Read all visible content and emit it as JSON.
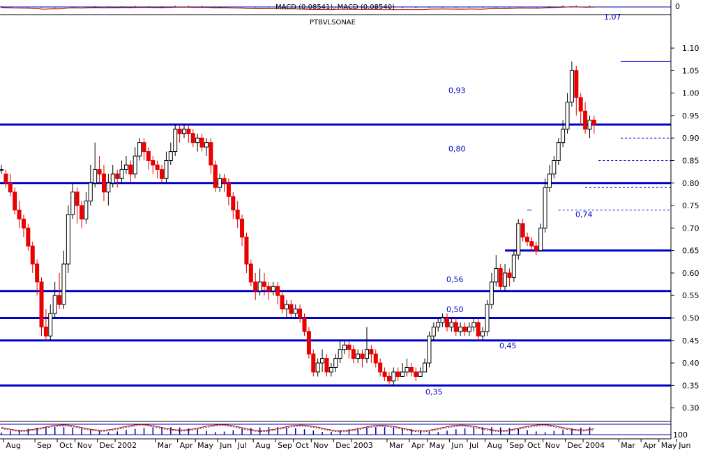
{
  "chart_data": {
    "type": "candlestick",
    "header": {
      "macd_label": "MACD (0.08541), MACD (0.08540)",
      "macd_value": "0",
      "symbol": "PTBVLSONAE"
    },
    "y_axis": {
      "min": 0.27,
      "max": 1.145,
      "ticks": [
        0.3,
        0.35,
        0.4,
        0.45,
        0.5,
        0.55,
        0.6,
        0.65,
        0.7,
        0.75,
        0.8,
        0.85,
        0.9,
        0.95,
        1.0,
        1.05,
        1.1
      ],
      "tick_labels": [
        "0.30",
        "0.35",
        "0.40",
        "0.45",
        "0.50",
        "0.55",
        "0.60",
        "0.65",
        "0.70",
        "0.75",
        "0.80",
        "0.85",
        "0.90",
        "0.95",
        "1.00",
        "1.05",
        "1.10"
      ]
    },
    "x_axis": {
      "labels": [
        "Aug",
        "Sep",
        "Oct",
        "Nov",
        "Dec",
        "2002",
        "Mar",
        "Apr",
        "May",
        "Jun",
        "Jul",
        "Aug",
        "Sep",
        "Oct",
        "Nov",
        "Dec",
        "2003",
        "Mar",
        "Apr",
        "May",
        "Jun",
        "Jul",
        "Aug",
        "Sep",
        "Oct",
        "Nov",
        "Dec",
        "2004",
        "Mar",
        "Apr",
        "May",
        "Jun"
      ],
      "label_weeks": [
        1,
        8,
        13,
        17,
        22,
        26,
        35,
        40,
        44,
        49,
        53,
        57,
        62,
        66,
        70,
        75,
        79,
        87,
        92,
        96,
        101,
        105,
        109,
        114,
        118,
        122,
        127,
        131,
        139,
        144,
        148,
        152
      ]
    },
    "support_resistance": [
      {
        "level": 0.93,
        "label": "0,93"
      },
      {
        "level": 0.8,
        "label": "0,80"
      },
      {
        "level": 0.65,
        "label": ""
      },
      {
        "level": 0.56,
        "label": "0,56"
      },
      {
        "level": 0.5,
        "label": "0,50"
      },
      {
        "level": 0.45,
        "label": "0,45"
      },
      {
        "level": 0.35,
        "label": "0,35"
      }
    ],
    "annotations": [
      {
        "text": "0,74",
        "price": 0.74
      },
      {
        "text": "1,07",
        "price": 1.07
      }
    ],
    "dashed_levels": [
      0.9,
      0.85,
      0.79,
      0.74
    ],
    "peak_line": 1.07,
    "stoch_right_label": "100",
    "candles": [
      [
        0.83,
        0.83,
        0.84,
        0.82
      ],
      [
        0.82,
        0.8,
        0.83,
        0.79
      ],
      [
        0.8,
        0.78,
        0.82,
        0.77
      ],
      [
        0.78,
        0.74,
        0.79,
        0.73
      ],
      [
        0.74,
        0.72,
        0.76,
        0.7
      ],
      [
        0.72,
        0.7,
        0.73,
        0.68
      ],
      [
        0.7,
        0.66,
        0.71,
        0.65
      ],
      [
        0.66,
        0.62,
        0.67,
        0.6
      ],
      [
        0.62,
        0.58,
        0.63,
        0.55
      ],
      [
        0.58,
        0.48,
        0.59,
        0.46
      ],
      [
        0.48,
        0.46,
        0.52,
        0.45
      ],
      [
        0.46,
        0.51,
        0.53,
        0.45
      ],
      [
        0.51,
        0.55,
        0.58,
        0.5
      ],
      [
        0.55,
        0.53,
        0.6,
        0.52
      ],
      [
        0.53,
        0.62,
        0.65,
        0.52
      ],
      [
        0.62,
        0.73,
        0.75,
        0.6
      ],
      [
        0.73,
        0.78,
        0.8,
        0.72
      ],
      [
        0.78,
        0.75,
        0.79,
        0.71
      ],
      [
        0.75,
        0.72,
        0.76,
        0.7
      ],
      [
        0.72,
        0.76,
        0.78,
        0.71
      ],
      [
        0.76,
        0.8,
        0.84,
        0.75
      ],
      [
        0.8,
        0.83,
        0.89,
        0.79
      ],
      [
        0.83,
        0.82,
        0.86,
        0.8
      ],
      [
        0.82,
        0.78,
        0.84,
        0.76
      ],
      [
        0.78,
        0.8,
        0.82,
        0.75
      ],
      [
        0.8,
        0.82,
        0.84,
        0.79
      ],
      [
        0.82,
        0.81,
        0.83,
        0.79
      ],
      [
        0.81,
        0.83,
        0.85,
        0.8
      ],
      [
        0.83,
        0.84,
        0.86,
        0.82
      ],
      [
        0.84,
        0.82,
        0.85,
        0.8
      ],
      [
        0.82,
        0.86,
        0.88,
        0.81
      ],
      [
        0.86,
        0.89,
        0.9,
        0.85
      ],
      [
        0.89,
        0.87,
        0.9,
        0.85
      ],
      [
        0.87,
        0.85,
        0.88,
        0.83
      ],
      [
        0.85,
        0.84,
        0.86,
        0.82
      ],
      [
        0.84,
        0.83,
        0.85,
        0.81
      ],
      [
        0.83,
        0.81,
        0.84,
        0.8
      ],
      [
        0.81,
        0.85,
        0.87,
        0.8
      ],
      [
        0.85,
        0.87,
        0.89,
        0.84
      ],
      [
        0.87,
        0.92,
        0.93,
        0.86
      ],
      [
        0.92,
        0.91,
        0.93,
        0.89
      ],
      [
        0.91,
        0.92,
        0.93,
        0.9
      ],
      [
        0.92,
        0.91,
        0.93,
        0.89
      ],
      [
        0.91,
        0.89,
        0.92,
        0.88
      ],
      [
        0.89,
        0.9,
        0.91,
        0.87
      ],
      [
        0.9,
        0.88,
        0.91,
        0.87
      ],
      [
        0.88,
        0.89,
        0.9,
        0.86
      ],
      [
        0.89,
        0.84,
        0.9,
        0.82
      ],
      [
        0.84,
        0.79,
        0.85,
        0.78
      ],
      [
        0.79,
        0.81,
        0.82,
        0.78
      ],
      [
        0.81,
        0.8,
        0.82,
        0.78
      ],
      [
        0.8,
        0.77,
        0.81,
        0.75
      ],
      [
        0.77,
        0.74,
        0.78,
        0.72
      ],
      [
        0.74,
        0.72,
        0.76,
        0.7
      ],
      [
        0.72,
        0.68,
        0.73,
        0.66
      ],
      [
        0.68,
        0.62,
        0.69,
        0.6
      ],
      [
        0.62,
        0.58,
        0.63,
        0.57
      ],
      [
        0.58,
        0.56,
        0.6,
        0.54
      ],
      [
        0.56,
        0.58,
        0.61,
        0.55
      ],
      [
        0.58,
        0.57,
        0.6,
        0.55
      ],
      [
        0.57,
        0.56,
        0.58,
        0.54
      ],
      [
        0.56,
        0.57,
        0.58,
        0.55
      ],
      [
        0.57,
        0.55,
        0.58,
        0.53
      ],
      [
        0.55,
        0.52,
        0.56,
        0.51
      ],
      [
        0.52,
        0.53,
        0.54,
        0.5
      ],
      [
        0.53,
        0.51,
        0.54,
        0.5
      ],
      [
        0.51,
        0.52,
        0.53,
        0.5
      ],
      [
        0.52,
        0.5,
        0.53,
        0.49
      ],
      [
        0.5,
        0.47,
        0.51,
        0.46
      ],
      [
        0.47,
        0.42,
        0.48,
        0.41
      ],
      [
        0.42,
        0.38,
        0.43,
        0.37
      ],
      [
        0.38,
        0.4,
        0.41,
        0.37
      ],
      [
        0.4,
        0.41,
        0.43,
        0.38
      ],
      [
        0.41,
        0.38,
        0.42,
        0.37
      ],
      [
        0.38,
        0.39,
        0.4,
        0.37
      ],
      [
        0.39,
        0.41,
        0.42,
        0.38
      ],
      [
        0.41,
        0.43,
        0.45,
        0.4
      ],
      [
        0.43,
        0.44,
        0.45,
        0.42
      ],
      [
        0.44,
        0.43,
        0.45,
        0.41
      ],
      [
        0.43,
        0.41,
        0.44,
        0.4
      ],
      [
        0.41,
        0.42,
        0.43,
        0.4
      ],
      [
        0.42,
        0.41,
        0.43,
        0.39
      ],
      [
        0.41,
        0.43,
        0.48,
        0.4
      ],
      [
        0.43,
        0.42,
        0.44,
        0.4
      ],
      [
        0.42,
        0.4,
        0.43,
        0.39
      ],
      [
        0.4,
        0.38,
        0.41,
        0.37
      ],
      [
        0.38,
        0.37,
        0.39,
        0.36
      ],
      [
        0.37,
        0.36,
        0.38,
        0.35
      ],
      [
        0.36,
        0.38,
        0.39,
        0.35
      ],
      [
        0.38,
        0.37,
        0.39,
        0.36
      ],
      [
        0.37,
        0.38,
        0.4,
        0.37
      ],
      [
        0.38,
        0.39,
        0.41,
        0.37
      ],
      [
        0.39,
        0.38,
        0.4,
        0.37
      ],
      [
        0.38,
        0.37,
        0.39,
        0.36
      ],
      [
        0.37,
        0.38,
        0.39,
        0.37
      ],
      [
        0.38,
        0.4,
        0.41,
        0.38
      ],
      [
        0.4,
        0.46,
        0.47,
        0.39
      ],
      [
        0.46,
        0.48,
        0.49,
        0.45
      ],
      [
        0.48,
        0.49,
        0.5,
        0.47
      ],
      [
        0.49,
        0.5,
        0.51,
        0.48
      ],
      [
        0.5,
        0.48,
        0.51,
        0.47
      ],
      [
        0.48,
        0.49,
        0.5,
        0.47
      ],
      [
        0.49,
        0.47,
        0.5,
        0.46
      ],
      [
        0.47,
        0.48,
        0.49,
        0.46
      ],
      [
        0.48,
        0.47,
        0.49,
        0.46
      ],
      [
        0.47,
        0.48,
        0.49,
        0.46
      ],
      [
        0.48,
        0.49,
        0.5,
        0.47
      ],
      [
        0.49,
        0.46,
        0.5,
        0.45
      ],
      [
        0.46,
        0.47,
        0.48,
        0.45
      ],
      [
        0.47,
        0.53,
        0.54,
        0.46
      ],
      [
        0.53,
        0.58,
        0.6,
        0.52
      ],
      [
        0.58,
        0.61,
        0.64,
        0.57
      ],
      [
        0.61,
        0.57,
        0.62,
        0.56
      ],
      [
        0.57,
        0.6,
        0.62,
        0.56
      ],
      [
        0.6,
        0.59,
        0.61,
        0.57
      ],
      [
        0.59,
        0.64,
        0.65,
        0.58
      ],
      [
        0.64,
        0.71,
        0.72,
        0.63
      ],
      [
        0.71,
        0.68,
        0.72,
        0.67
      ],
      [
        0.68,
        0.67,
        0.69,
        0.66
      ],
      [
        0.67,
        0.66,
        0.68,
        0.65
      ],
      [
        0.66,
        0.65,
        0.67,
        0.64
      ],
      [
        0.65,
        0.7,
        0.71,
        0.65
      ],
      [
        0.7,
        0.79,
        0.81,
        0.69
      ],
      [
        0.79,
        0.82,
        0.84,
        0.78
      ],
      [
        0.82,
        0.85,
        0.86,
        0.81
      ],
      [
        0.85,
        0.89,
        0.9,
        0.84
      ],
      [
        0.89,
        0.92,
        0.94,
        0.88
      ],
      [
        0.92,
        0.98,
        1.0,
        0.91
      ],
      [
        0.98,
        1.05,
        1.07,
        0.97
      ],
      [
        1.05,
        0.99,
        1.06,
        0.95
      ],
      [
        0.99,
        0.96,
        1.0,
        0.93
      ],
      [
        0.96,
        0.92,
        0.98,
        0.91
      ],
      [
        0.92,
        0.94,
        0.95,
        0.9
      ],
      [
        0.94,
        0.93,
        0.95,
        0.91
      ]
    ]
  }
}
